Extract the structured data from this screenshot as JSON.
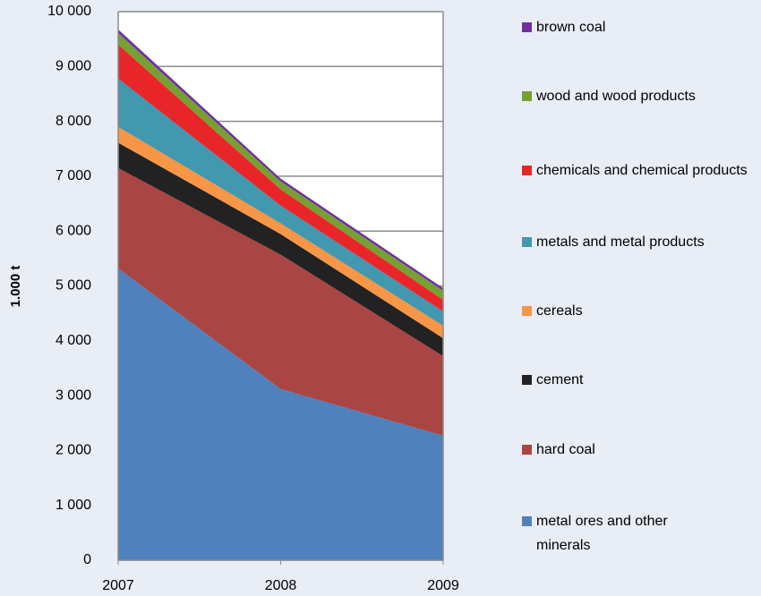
{
  "chart_data": {
    "type": "stacked-area",
    "y_label": "1.000 t",
    "x": [
      2007,
      2008,
      2009
    ],
    "xlim": [
      2007,
      2009
    ],
    "xticks": [
      2007,
      2008,
      2009
    ],
    "ylim": [
      0,
      10000
    ],
    "yticks": [
      0,
      {
        "value": 1000,
        "label": "1 000"
      },
      {
        "value": 2000,
        "label": "2 000"
      },
      {
        "value": 3000,
        "label": "3 000"
      },
      {
        "value": 4000,
        "label": "4 000"
      },
      {
        "value": 5000,
        "label": "5 000"
      },
      {
        "value": 6000,
        "label": "6 000"
      },
      {
        "value": 7000,
        "label": "7 000"
      },
      {
        "value": 8000,
        "label": "8 000"
      },
      {
        "value": 9000,
        "label": "9 000"
      },
      {
        "value": 10000,
        "label": "10 000"
      }
    ],
    "grid": true,
    "series": [
      {
        "name": "metal ores and other minerals",
        "color": "#4f81bd",
        "values": [
          5320,
          3120,
          2270
        ]
      },
      {
        "name": "hard coal",
        "color": "#a94543",
        "values": [
          1830,
          2450,
          1450
        ]
      },
      {
        "name": "cement",
        "color": "#222222",
        "values": [
          460,
          375,
          325
        ]
      },
      {
        "name": "cereals",
        "color": "#f79646",
        "values": [
          290,
          195,
          230
        ]
      },
      {
        "name": "metals and metal products",
        "color": "#4198af",
        "values": [
          880,
          325,
          260
        ]
      },
      {
        "name": "chemicals and chemical products",
        "color": "#e8262a",
        "values": [
          620,
          295,
          210
        ]
      },
      {
        "name": "wood and wood products",
        "color": "#77a033",
        "values": [
          210,
          145,
          165
        ]
      },
      {
        "name": "brown coal",
        "color": "#7030a0",
        "values": [
          65,
          50,
          50
        ]
      }
    ]
  }
}
